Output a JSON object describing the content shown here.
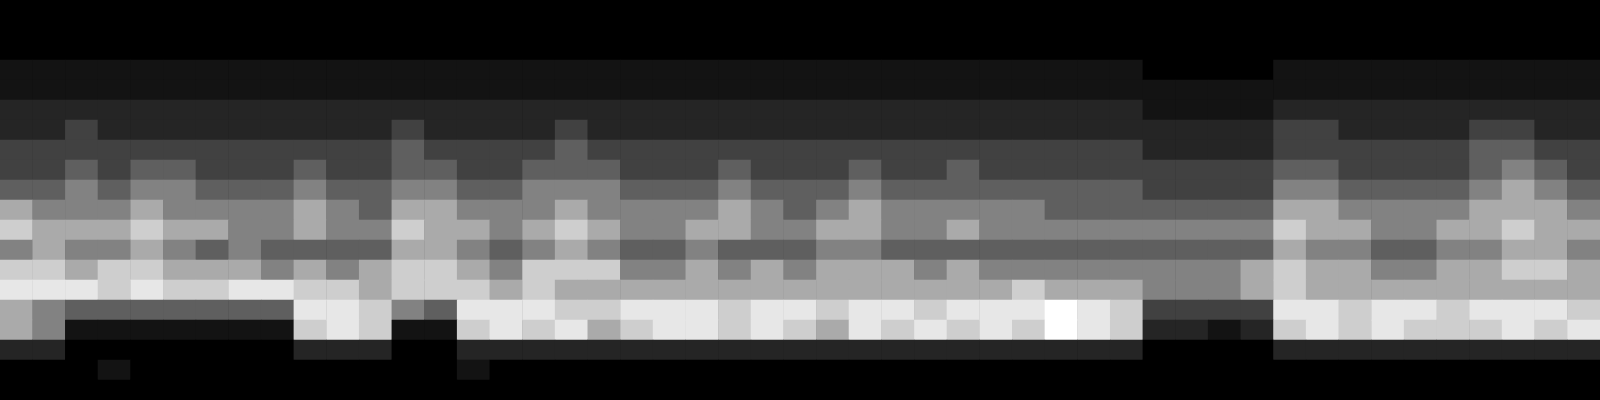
{
  "chart_data": {
    "type": "heatmap",
    "tick_labels": false,
    "color_range": [
      0,
      9
    ],
    "cells": [
      [
        0,
        0,
        0,
        0,
        0,
        0,
        0,
        0,
        0,
        0,
        0,
        0,
        0,
        0,
        0,
        0,
        0,
        0,
        0,
        0,
        0,
        0,
        0,
        0,
        0,
        0,
        0,
        0,
        0,
        0,
        0,
        0,
        0,
        0,
        0,
        0,
        0,
        0,
        0,
        0,
        0,
        0,
        0,
        0,
        0,
        0,
        0,
        0,
        0
      ],
      [
        0,
        0,
        0,
        0,
        0,
        0,
        0,
        0,
        0,
        0,
        0,
        0,
        0,
        0,
        0,
        0,
        0,
        0,
        0,
        0,
        0,
        0,
        0,
        0,
        0,
        0,
        0,
        0,
        0,
        0,
        0,
        0,
        0,
        0,
        0,
        0,
        0,
        0,
        0,
        0,
        0,
        0,
        0,
        0,
        0,
        0,
        0,
        0,
        0
      ],
      [
        0,
        0,
        0,
        0,
        0,
        0,
        0,
        0,
        0,
        0,
        0,
        0,
        0,
        0,
        0,
        0,
        0,
        0,
        0,
        0,
        0,
        0,
        0,
        0,
        0,
        0,
        0,
        0,
        0,
        0,
        0,
        0,
        0,
        0,
        0,
        0,
        0,
        0,
        0,
        0,
        0,
        0,
        0,
        0,
        0,
        0,
        0,
        0,
        0
      ],
      [
        1,
        1,
        1,
        1,
        1,
        1,
        1,
        1,
        1,
        1,
        1,
        1,
        1,
        1,
        1,
        1,
        1,
        1,
        1,
        1,
        1,
        1,
        1,
        1,
        1,
        1,
        1,
        1,
        1,
        1,
        1,
        1,
        1,
        1,
        1,
        0,
        0,
        0,
        0,
        1,
        1,
        1,
        1,
        1,
        1,
        1,
        1,
        1,
        1
      ],
      [
        1,
        1,
        1,
        1,
        1,
        1,
        1,
        1,
        1,
        1,
        1,
        1,
        1,
        1,
        1,
        1,
        1,
        1,
        1,
        1,
        1,
        1,
        1,
        1,
        1,
        1,
        1,
        1,
        1,
        1,
        1,
        1,
        1,
        1,
        1,
        1,
        1,
        1,
        1,
        1,
        1,
        1,
        1,
        1,
        1,
        1,
        1,
        1,
        1
      ],
      [
        2,
        2,
        2,
        2,
        2,
        2,
        2,
        2,
        2,
        2,
        2,
        2,
        2,
        2,
        2,
        2,
        2,
        2,
        2,
        2,
        2,
        2,
        2,
        2,
        2,
        2,
        2,
        2,
        2,
        2,
        2,
        2,
        2,
        2,
        2,
        1,
        1,
        1,
        1,
        2,
        2,
        2,
        2,
        2,
        2,
        2,
        2,
        2,
        2
      ],
      [
        2,
        2,
        3,
        2,
        2,
        2,
        2,
        2,
        2,
        2,
        2,
        2,
        3,
        2,
        2,
        2,
        2,
        3,
        2,
        2,
        2,
        2,
        2,
        2,
        2,
        2,
        2,
        2,
        2,
        2,
        2,
        2,
        2,
        2,
        2,
        2,
        2,
        2,
        2,
        3,
        3,
        2,
        2,
        2,
        2,
        3,
        3,
        2,
        2
      ],
      [
        3,
        3,
        3,
        3,
        3,
        3,
        3,
        3,
        3,
        3,
        3,
        3,
        4,
        3,
        3,
        3,
        3,
        4,
        3,
        3,
        3,
        3,
        3,
        3,
        3,
        3,
        3,
        3,
        3,
        3,
        3,
        3,
        3,
        3,
        3,
        2,
        2,
        2,
        2,
        3,
        3,
        3,
        3,
        3,
        3,
        4,
        4,
        3,
        3
      ],
      [
        3,
        3,
        4,
        3,
        4,
        4,
        3,
        3,
        3,
        4,
        3,
        3,
        4,
        4,
        3,
        3,
        4,
        4,
        4,
        3,
        3,
        3,
        4,
        3,
        3,
        3,
        4,
        3,
        3,
        4,
        3,
        3,
        3,
        3,
        3,
        3,
        3,
        3,
        3,
        4,
        4,
        3,
        3,
        3,
        3,
        4,
        5,
        4,
        3
      ],
      [
        4,
        4,
        5,
        4,
        5,
        5,
        4,
        4,
        4,
        5,
        4,
        4,
        5,
        5,
        4,
        4,
        5,
        5,
        5,
        4,
        4,
        4,
        5,
        4,
        4,
        4,
        5,
        4,
        4,
        4,
        4,
        4,
        4,
        4,
        4,
        3,
        3,
        3,
        3,
        5,
        5,
        4,
        4,
        4,
        4,
        5,
        6,
        5,
        4
      ],
      [
        6,
        5,
        5,
        5,
        6,
        5,
        5,
        5,
        5,
        6,
        5,
        4,
        6,
        6,
        5,
        5,
        5,
        6,
        5,
        5,
        5,
        5,
        6,
        5,
        4,
        5,
        6,
        5,
        5,
        5,
        5,
        5,
        4,
        4,
        4,
        4,
        4,
        4,
        4,
        6,
        6,
        5,
        5,
        5,
        5,
        6,
        6,
        6,
        5
      ],
      [
        7,
        6,
        6,
        6,
        7,
        6,
        6,
        5,
        5,
        6,
        5,
        5,
        7,
        6,
        6,
        5,
        6,
        7,
        6,
        5,
        5,
        6,
        6,
        5,
        5,
        6,
        6,
        5,
        5,
        6,
        5,
        5,
        5,
        5,
        5,
        5,
        5,
        5,
        5,
        7,
        6,
        6,
        5,
        5,
        6,
        6,
        7,
        6,
        6
      ],
      [
        5,
        6,
        5,
        5,
        6,
        5,
        4,
        5,
        4,
        4,
        4,
        4,
        6,
        6,
        5,
        4,
        5,
        6,
        5,
        4,
        4,
        5,
        4,
        4,
        4,
        5,
        5,
        4,
        4,
        4,
        4,
        4,
        4,
        4,
        4,
        4,
        4,
        4,
        4,
        6,
        5,
        5,
        4,
        4,
        5,
        5,
        6,
        6,
        5
      ],
      [
        7,
        7,
        6,
        7,
        7,
        6,
        6,
        6,
        5,
        6,
        5,
        6,
        7,
        7,
        6,
        5,
        7,
        7,
        7,
        5,
        5,
        6,
        5,
        6,
        5,
        6,
        6,
        6,
        5,
        6,
        5,
        5,
        5,
        5,
        5,
        5,
        5,
        5,
        6,
        7,
        6,
        6,
        5,
        5,
        6,
        6,
        7,
        7,
        6
      ],
      [
        8,
        8,
        8,
        7,
        8,
        7,
        7,
        8,
        8,
        7,
        7,
        6,
        7,
        7,
        7,
        6,
        7,
        6,
        6,
        6,
        6,
        6,
        6,
        6,
        6,
        6,
        6,
        6,
        6,
        6,
        6,
        7,
        6,
        6,
        6,
        5,
        5,
        5,
        6,
        7,
        6,
        6,
        6,
        6,
        6,
        6,
        6,
        6,
        6
      ],
      [
        6,
        5,
        4,
        4,
        4,
        4,
        4,
        4,
        4,
        8,
        8,
        7,
        5,
        4,
        8,
        8,
        8,
        7,
        7,
        8,
        8,
        8,
        7,
        8,
        8,
        7,
        8,
        8,
        7,
        8,
        8,
        8,
        9,
        8,
        7,
        3,
        3,
        3,
        3,
        8,
        8,
        7,
        8,
        8,
        7,
        8,
        8,
        8,
        7
      ],
      [
        6,
        5,
        1,
        1,
        1,
        1,
        1,
        1,
        1,
        7,
        8,
        7,
        1,
        1,
        7,
        8,
        7,
        8,
        6,
        7,
        8,
        8,
        7,
        8,
        7,
        6,
        8,
        7,
        8,
        7,
        8,
        7,
        9,
        8,
        7,
        2,
        2,
        1,
        2,
        7,
        8,
        7,
        8,
        7,
        7,
        7,
        8,
        7,
        8
      ],
      [
        2,
        2,
        0,
        0,
        0,
        0,
        0,
        0,
        0,
        2,
        2,
        2,
        0,
        0,
        2,
        2,
        2,
        2,
        2,
        2,
        2,
        2,
        2,
        2,
        2,
        2,
        2,
        2,
        2,
        2,
        2,
        2,
        2,
        2,
        2,
        0,
        0,
        0,
        0,
        2,
        2,
        2,
        2,
        2,
        2,
        2,
        2,
        2,
        2
      ],
      [
        0,
        0,
        0,
        1,
        0,
        0,
        0,
        0,
        0,
        0,
        0,
        0,
        0,
        0,
        1,
        0,
        0,
        0,
        0,
        0,
        0,
        0,
        0,
        0,
        0,
        0,
        0,
        0,
        0,
        0,
        0,
        0,
        0,
        0,
        0,
        0,
        0,
        0,
        0,
        0,
        0,
        0,
        0,
        0,
        0,
        0,
        0,
        0,
        0
      ],
      [
        0,
        0,
        0,
        0,
        0,
        0,
        0,
        0,
        0,
        0,
        0,
        0,
        0,
        0,
        0,
        0,
        0,
        0,
        0,
        0,
        0,
        0,
        0,
        0,
        0,
        0,
        0,
        0,
        0,
        0,
        0,
        0,
        0,
        0,
        0,
        0,
        0,
        0,
        0,
        0,
        0,
        0,
        0,
        0,
        0,
        0,
        0,
        0,
        0
      ]
    ]
  }
}
